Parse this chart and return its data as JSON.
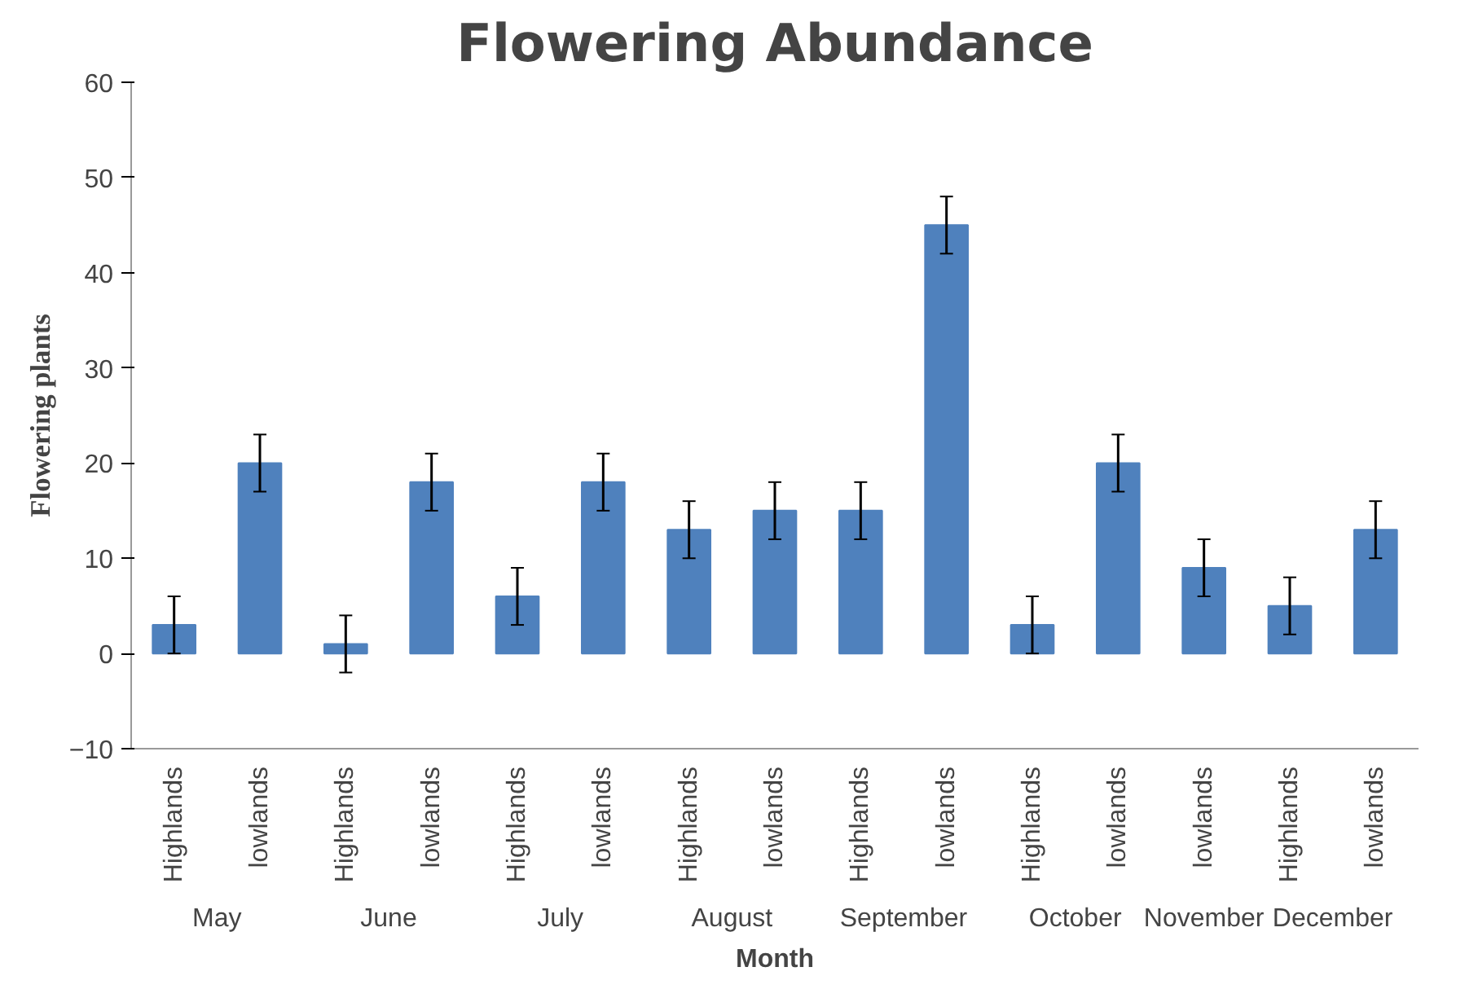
{
  "chart_data": {
    "type": "bar",
    "title": "Flowering Abundance",
    "xlabel": "Month",
    "ylabel": "Flowering plants",
    "categories": [
      "Highlands",
      "lowlands",
      "Highlands",
      "lowlands",
      "Highlands",
      "lowlands",
      "Highlands",
      "lowlands",
      "Highlands",
      "lowlands",
      "Highlands",
      "lowlands",
      "lowlands",
      "Highlands",
      "lowlands"
    ],
    "values": [
      3,
      20,
      1,
      18,
      6,
      18,
      13,
      15,
      15,
      45,
      3,
      20,
      9,
      5,
      13
    ],
    "errors": [
      3,
      3,
      3,
      3,
      3,
      3,
      3,
      3,
      3,
      3,
      3,
      3,
      3,
      3,
      3
    ],
    "color": "#4f81bd",
    "annotations": [
      "May",
      "June",
      "July",
      "August",
      "September",
      "October",
      "November",
      "December"
    ],
    "ylim": [
      -10,
      60
    ],
    "yticks": [
      -10,
      0,
      10,
      20,
      30,
      40,
      50,
      60
    ],
    "grid": false
  }
}
